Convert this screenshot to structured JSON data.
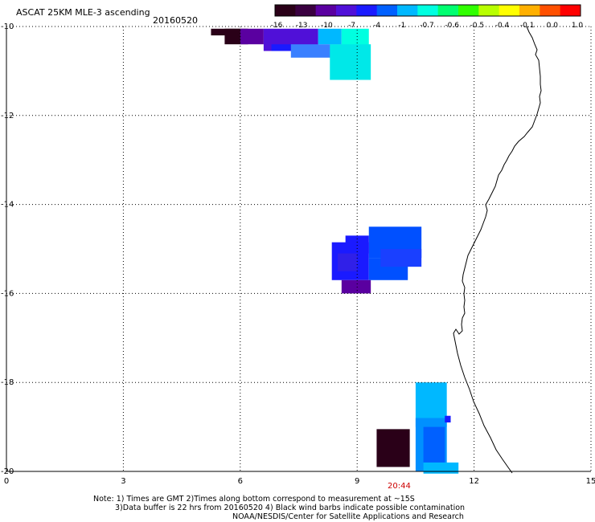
{
  "header": {
    "title": "ASCAT 25KM MLE-3 ascending",
    "date": "20160520"
  },
  "colorbar": {
    "labels": [
      "-16",
      "-13",
      "-10",
      "-7",
      "-4",
      "-1",
      "-0.7",
      "-0.6",
      "-0.5",
      "-0.4",
      "-0.1",
      "0.0",
      "1.0"
    ],
    "colors": [
      "#2a0018",
      "#3a0040",
      "#5a00a0",
      "#5010d8",
      "#1a1aff",
      "#0060ff",
      "#00b8ff",
      "#00ffe0",
      "#00ff70",
      "#30ff00",
      "#b8ff00",
      "#ffff00",
      "#ffb000",
      "#ff5000",
      "#ff0000"
    ]
  },
  "map": {
    "x_axis": {
      "ticks": [
        "0",
        "3",
        "6",
        "9",
        "12",
        "15"
      ],
      "range": [
        0,
        15
      ]
    },
    "y_axis": {
      "ticks": [
        "-10",
        "-12",
        "-14",
        "-16",
        "-18",
        "-20"
      ],
      "range": [
        -20,
        -10
      ]
    },
    "timestamp": "20:44"
  },
  "notes": {
    "line1": "Note: 1) Times are GMT 2)Times along bottom correspond to measurement at ~15S",
    "line2": "3)Data buffer is 22 hrs from 20160520 4) Black wind barbs indicate possible contamination",
    "line3": "NOAA/NESDIS/Center for Satellite Applications and Research"
  }
}
